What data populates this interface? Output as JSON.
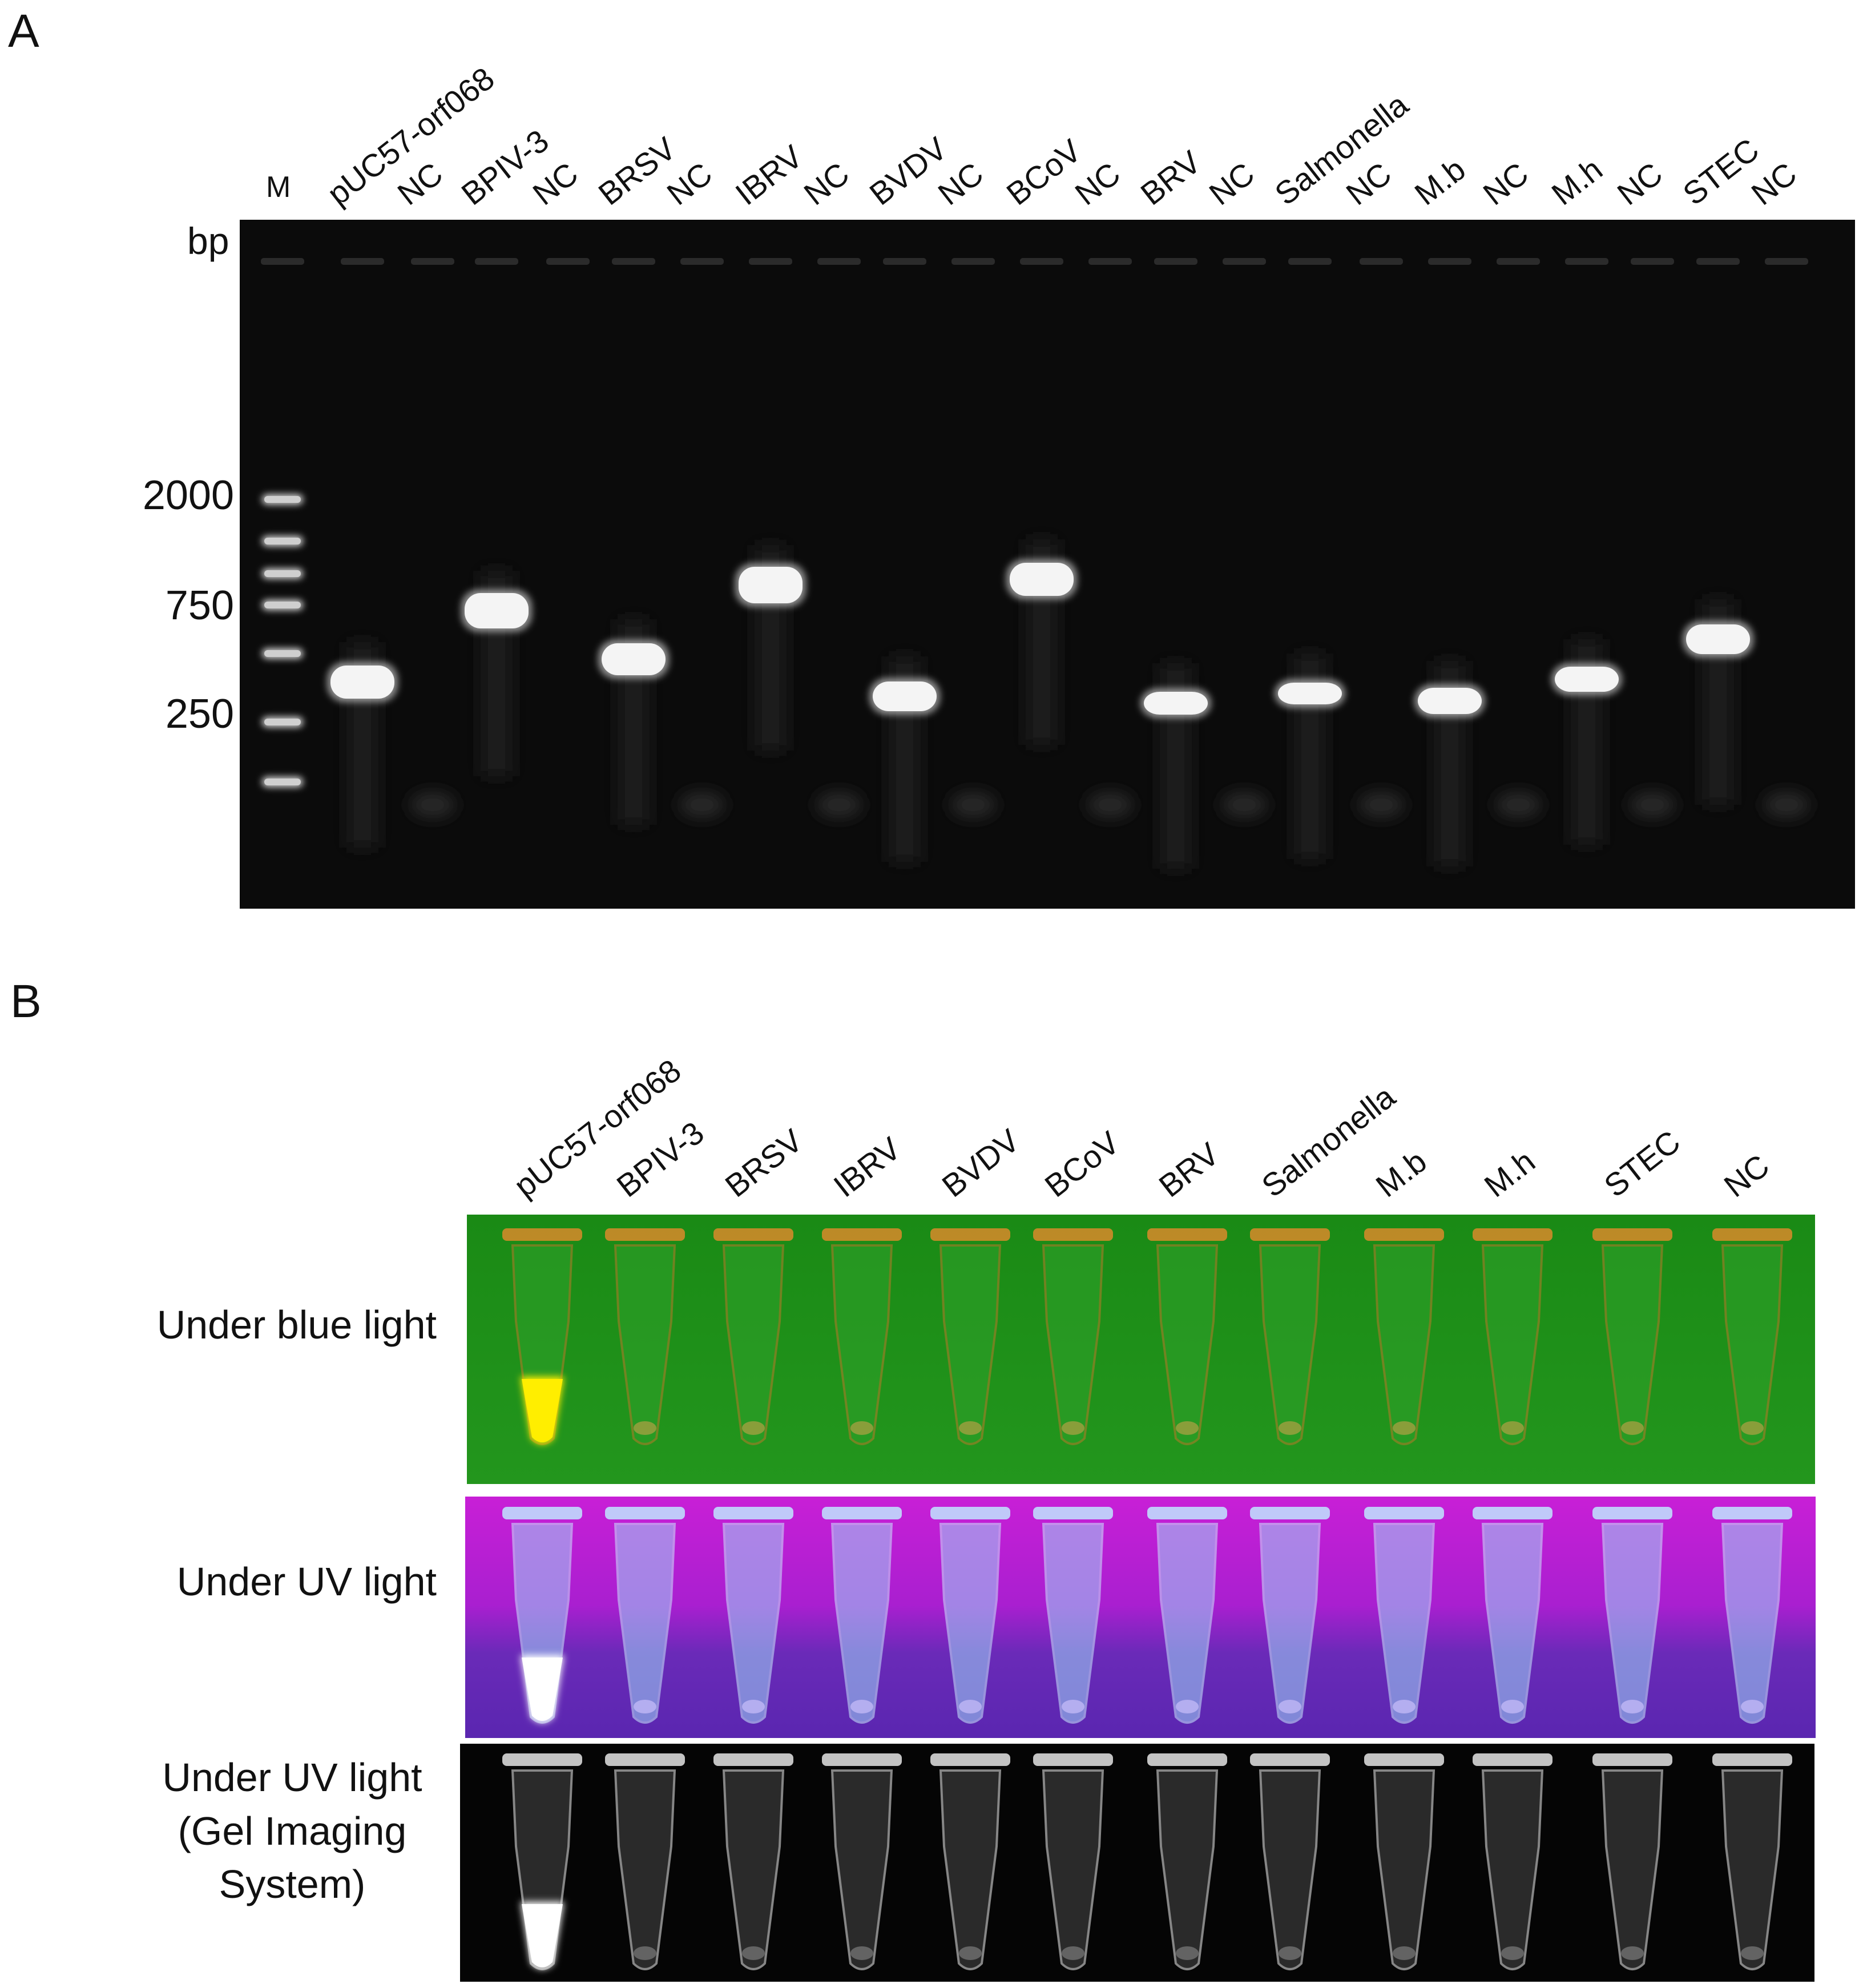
{
  "panel_a": {
    "letter": "A",
    "unit_label": "bp",
    "ladder_lane_label": "M",
    "lane_labels": [
      "pUC57-orf068",
      "NC",
      "BPIV-3",
      "NC",
      "BRSV",
      "NC",
      "IBRV",
      "NC",
      "BVDV",
      "NC",
      "BCoV",
      "NC",
      "BRV",
      "NC",
      "Salmonella",
      "NC",
      "M.b",
      "NC",
      "M.h",
      "NC",
      "STEC",
      "NC"
    ],
    "marker_labels": [
      "2000",
      "750",
      "250"
    ],
    "marker_values_bp": [
      2000,
      750,
      250
    ],
    "bands": [
      {
        "lane": "pUC57-orf068",
        "present": true
      },
      {
        "lane": "BPIV-3",
        "present": true
      },
      {
        "lane": "BRSV",
        "present": true
      },
      {
        "lane": "IBRV",
        "present": true
      },
      {
        "lane": "BVDV",
        "present": true
      },
      {
        "lane": "BCoV",
        "present": true
      },
      {
        "lane": "BRV",
        "present": true
      },
      {
        "lane": "Salmonella",
        "present": true
      },
      {
        "lane": "M.b",
        "present": true
      },
      {
        "lane": "M.h",
        "present": true
      },
      {
        "lane": "STEC",
        "present": true
      },
      {
        "lane": "NC",
        "present": false
      }
    ],
    "gel_color": "#0a0a0a"
  },
  "panel_b": {
    "letter": "B",
    "tube_labels": [
      "pUC57-orf068",
      "BPIV-3",
      "BRSV",
      "IBRV",
      "BVDV",
      "BCoV",
      "BRV",
      "Salmonella",
      "M.b",
      "M.h",
      "STEC",
      "NC"
    ],
    "positive_tube": "pUC57-orf068",
    "rows": [
      {
        "label_lines": [
          "Under blue light"
        ],
        "background": "#1f8f1a",
        "signal_color": "#ffee00"
      },
      {
        "label_lines": [
          "Under UV light"
        ],
        "background": "#b21fc8",
        "signal_color": "#ffffff"
      },
      {
        "label_lines": [
          "Under UV light",
          "(Gel Imaging",
          "System)"
        ],
        "background": "#000000",
        "signal_color": "#ffffff"
      }
    ]
  }
}
